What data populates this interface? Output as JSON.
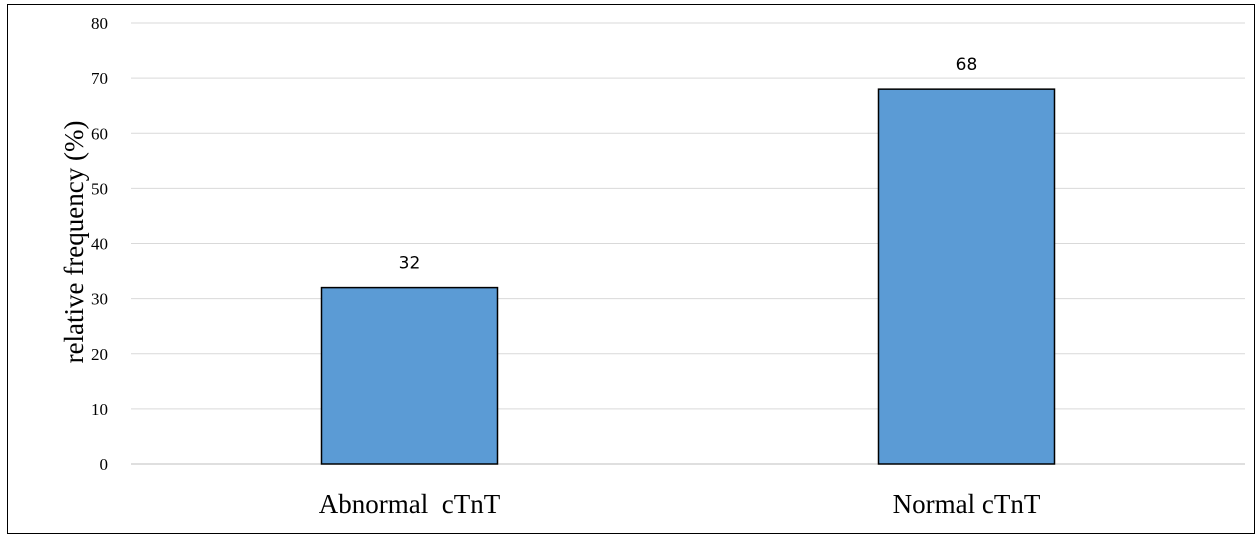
{
  "chart_data": {
    "type": "bar",
    "categories": [
      "Abnormal  cTnT",
      "Normal cTnT"
    ],
    "values": [
      32,
      68
    ],
    "data_labels": [
      "32",
      "68"
    ],
    "title": "",
    "xlabel": "",
    "ylabel": "relative frequency (%)",
    "ylim": [
      0,
      80
    ],
    "yticks": [
      "0",
      "10",
      "20",
      "30",
      "40",
      "50",
      "60",
      "70",
      "80"
    ],
    "grid": true,
    "legend": "none",
    "bar_color": "#5b9bd5",
    "bar_edge_color": "#000000",
    "grid_color": "#d9d9d9"
  }
}
